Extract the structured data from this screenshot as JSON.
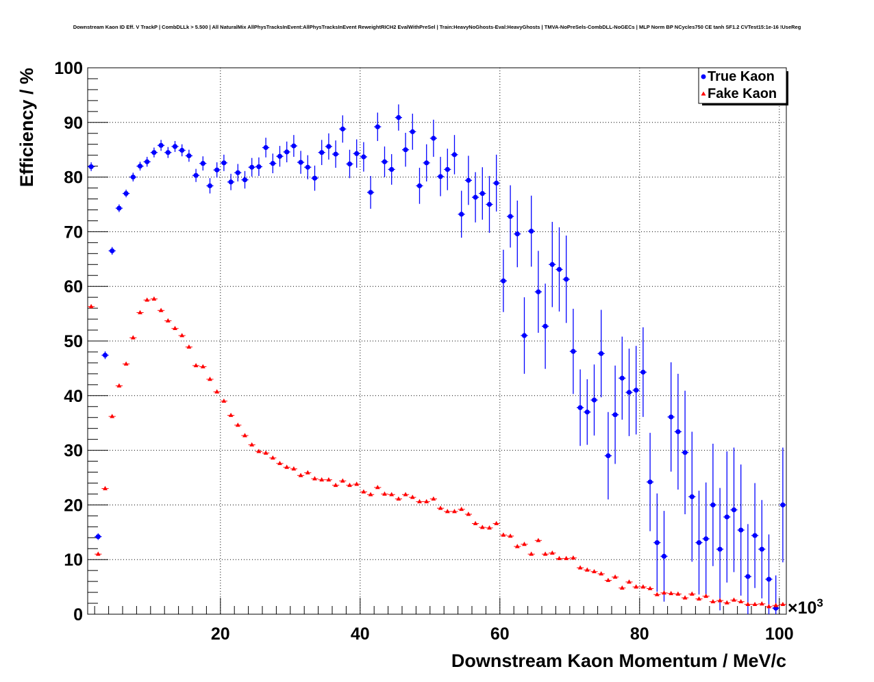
{
  "chart_data": {
    "type": "scatter",
    "title": "Downstream Kaon ID Eff. V TrackP | CombDLLk > 5.500 | All NaturalMix AllPhysTracksInEvent:AllPhysTracksInEvent ReweightRICH2 EvalWithPreSel | Train:HeavyNoGhosts-Eval:HeavyGhosts | TMVA-NoPreSels-CombDLL-NoGECs | MLP Norm BP NCycles750 CE tanh SF1.2 CVTest15:1e-16 !UseReg",
    "xlabel": "Downstream Kaon Momentum / MeV/c",
    "ylabel": "Efficiency / %",
    "x_multiplier_label": "×10",
    "x_multiplier_exp": "3",
    "xlim": [
      1,
      101
    ],
    "ylim": [
      0,
      100
    ],
    "x_ticks": [
      "20",
      "40",
      "60",
      "80",
      "100"
    ],
    "y_ticks": [
      "0",
      "10",
      "20",
      "30",
      "40",
      "50",
      "60",
      "70",
      "80",
      "90",
      "100"
    ],
    "grid": true,
    "legend_position": "top-right",
    "series": [
      {
        "name": "True Kaon",
        "color": "#0000ff",
        "marker": "circle",
        "x": [
          1.5,
          2.5,
          3.5,
          4.5,
          5.5,
          6.5,
          7.5,
          8.5,
          9.5,
          10.5,
          11.5,
          12.5,
          13.5,
          14.5,
          15.5,
          16.5,
          17.5,
          18.5,
          19.5,
          20.5,
          21.5,
          22.5,
          23.5,
          24.5,
          25.5,
          26.5,
          27.5,
          28.5,
          29.5,
          30.5,
          31.5,
          32.5,
          33.5,
          34.5,
          35.5,
          36.5,
          37.5,
          38.5,
          39.5,
          40.5,
          41.5,
          42.5,
          43.5,
          44.5,
          45.5,
          46.5,
          47.5,
          48.5,
          49.5,
          50.5,
          51.5,
          52.5,
          53.5,
          54.5,
          55.5,
          56.5,
          57.5,
          58.5,
          59.5,
          60.5,
          61.5,
          62.5,
          63.5,
          64.5,
          65.5,
          66.5,
          67.5,
          68.5,
          69.5,
          70.5,
          71.5,
          72.5,
          73.5,
          74.5,
          75.5,
          76.5,
          77.5,
          78.5,
          79.5,
          80.5,
          81.5,
          82.5,
          83.5,
          84.5,
          85.5,
          86.5,
          87.5,
          88.5,
          89.5,
          90.5,
          91.5,
          92.5,
          93.5,
          94.5,
          95.5,
          96.5,
          97.5,
          98.5,
          99.5,
          100.5
        ],
        "y": [
          81.9,
          14.2,
          47.4,
          66.5,
          74.3,
          77.0,
          80.0,
          82.0,
          82.8,
          84.5,
          85.8,
          84.5,
          85.6,
          84.9,
          83.9,
          80.3,
          82.5,
          78.4,
          81.3,
          82.6,
          79.1,
          80.8,
          79.5,
          81.8,
          81.9,
          85.4,
          82.5,
          83.8,
          84.6,
          85.7,
          82.7,
          81.8,
          79.8,
          84.5,
          85.6,
          84.2,
          88.8,
          82.4,
          84.3,
          83.7,
          77.2,
          89.2,
          82.8,
          81.4,
          90.9,
          85.0,
          88.3,
          78.4,
          82.6,
          87.1,
          80.1,
          81.4,
          84.1,
          73.2,
          79.4,
          76.3,
          77.0,
          75.0,
          78.9,
          61.0,
          72.8,
          69.6,
          51.0,
          70.1,
          59.0,
          52.7,
          64.0,
          63.1,
          61.3,
          48.1,
          37.8,
          37.0,
          39.2,
          47.7,
          29.0,
          36.5,
          43.2,
          40.6,
          41.0,
          44.3,
          24.2,
          13.1,
          10.6,
          36.1,
          33.4,
          29.6,
          21.5,
          13.1,
          13.8,
          20.0,
          11.9,
          17.8,
          19.1,
          15.4,
          6.9,
          14.4,
          11.9,
          6.4,
          1.1,
          20.0
        ],
        "err": [
          0.8,
          0.6,
          0.7,
          0.7,
          0.7,
          0.7,
          0.8,
          0.8,
          0.9,
          0.9,
          1.0,
          1.0,
          1.0,
          1.1,
          1.1,
          1.2,
          1.3,
          1.4,
          1.4,
          1.5,
          1.5,
          1.6,
          1.6,
          1.7,
          1.7,
          1.8,
          1.8,
          1.9,
          1.9,
          2.0,
          2.1,
          2.2,
          2.3,
          2.3,
          2.4,
          2.5,
          2.5,
          2.6,
          2.6,
          2.7,
          3.0,
          2.6,
          2.8,
          2.8,
          2.4,
          3.1,
          3.3,
          3.3,
          3.4,
          3.4,
          3.6,
          3.8,
          3.6,
          4.3,
          4.5,
          4.6,
          4.8,
          5.2,
          5.2,
          5.7,
          5.7,
          6.1,
          7.0,
          6.5,
          7.5,
          7.8,
          7.8,
          7.7,
          8.0,
          7.8,
          7.0,
          6.0,
          6.5,
          8.0,
          8.0,
          9.0,
          7.6,
          8.0,
          8.1,
          8.2,
          9.0,
          9.0,
          8.3,
          10.0,
          10.6,
          11.3,
          11.9,
          9.5,
          10.3,
          11.2,
          11.2,
          12.0,
          11.4,
          12.0,
          9.6,
          9.6,
          9.0,
          8.2,
          6.0,
          10.5
        ]
      },
      {
        "name": "Fake Kaon",
        "color": "#ff0000",
        "marker": "triangle",
        "x": [
          1.5,
          2.5,
          3.5,
          4.5,
          5.5,
          6.5,
          7.5,
          8.5,
          9.5,
          10.5,
          11.5,
          12.5,
          13.5,
          14.5,
          15.5,
          16.5,
          17.5,
          18.5,
          19.5,
          20.5,
          21.5,
          22.5,
          23.5,
          24.5,
          25.5,
          26.5,
          27.5,
          28.5,
          29.5,
          30.5,
          31.5,
          32.5,
          33.5,
          34.5,
          35.5,
          36.5,
          37.5,
          38.5,
          39.5,
          40.5,
          41.5,
          42.5,
          43.5,
          44.5,
          45.5,
          46.5,
          47.5,
          48.5,
          49.5,
          50.5,
          51.5,
          52.5,
          53.5,
          54.5,
          55.5,
          56.5,
          57.5,
          58.5,
          59.5,
          60.5,
          61.5,
          62.5,
          63.5,
          64.5,
          65.5,
          66.5,
          67.5,
          68.5,
          69.5,
          70.5,
          71.5,
          72.5,
          73.5,
          74.5,
          75.5,
          76.5,
          77.5,
          78.5,
          79.5,
          80.5,
          81.5,
          82.5,
          83.5,
          84.5,
          85.5,
          86.5,
          87.5,
          88.5,
          89.5,
          90.5,
          91.5,
          92.5,
          93.5,
          94.5,
          95.5,
          96.5,
          97.5,
          98.5,
          99.5,
          100.5
        ],
        "y": [
          56.3,
          11.0,
          23.0,
          36.2,
          41.8,
          45.8,
          50.6,
          55.2,
          57.5,
          57.7,
          55.6,
          53.7,
          52.3,
          51.0,
          48.9,
          45.5,
          45.3,
          43.0,
          40.7,
          39.0,
          36.4,
          34.6,
          32.7,
          31.0,
          29.8,
          29.5,
          28.6,
          27.6,
          26.9,
          26.6,
          25.4,
          25.9,
          24.8,
          24.6,
          24.6,
          23.6,
          24.4,
          23.6,
          23.8,
          22.4,
          21.9,
          23.2,
          22.0,
          21.9,
          21.1,
          21.9,
          21.4,
          20.6,
          20.6,
          21.1,
          19.4,
          18.8,
          18.8,
          19.2,
          18.3,
          16.6,
          15.9,
          15.8,
          16.6,
          14.5,
          14.3,
          12.4,
          12.8,
          11.0,
          13.5,
          11.0,
          11.2,
          10.2,
          10.2,
          10.3,
          8.5,
          8.1,
          7.8,
          7.4,
          6.2,
          6.8,
          4.8,
          5.9,
          5.0,
          5.0,
          4.7,
          3.6,
          3.9,
          3.8,
          3.7,
          3.0,
          3.7,
          2.8,
          3.3,
          2.3,
          2.5,
          2.1,
          2.6,
          2.3,
          1.8,
          1.8,
          1.9,
          1.4,
          1.6,
          1.8
        ]
      }
    ]
  }
}
